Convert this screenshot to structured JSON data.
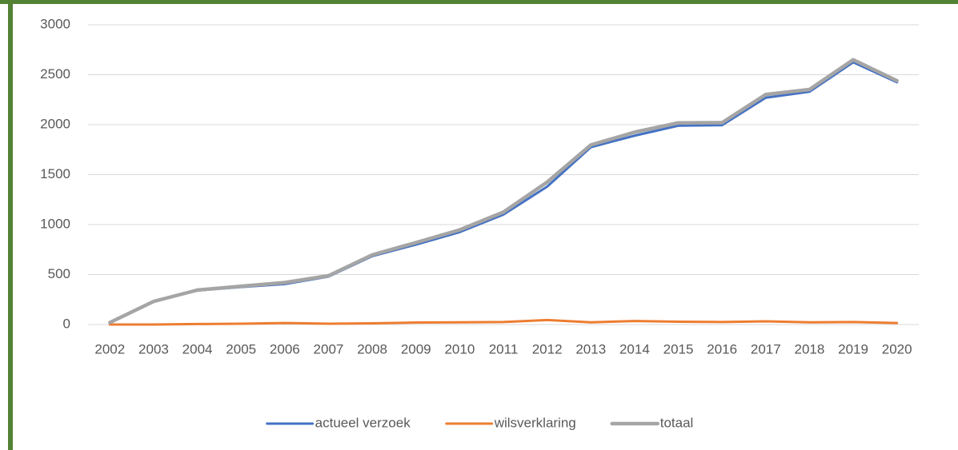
{
  "chart_data": {
    "type": "line",
    "categories": [
      "2002",
      "2003",
      "2004",
      "2005",
      "2006",
      "2007",
      "2008",
      "2009",
      "2010",
      "2011",
      "2012",
      "2013",
      "2014",
      "2015",
      "2016",
      "2017",
      "2018",
      "2019",
      "2020"
    ],
    "series": [
      {
        "name": "actueel verzoek",
        "color": "#4472c4",
        "values": [
          20,
          231,
          340,
          375,
          405,
          480,
          685,
          800,
          925,
          1100,
          1380,
          1775,
          1890,
          1990,
          1995,
          2270,
          2330,
          2625,
          2425
        ]
      },
      {
        "name": "wilsverklaring",
        "color": "#ed7d31",
        "values": [
          0,
          0,
          5,
          8,
          15,
          8,
          12,
          20,
          22,
          25,
          45,
          22,
          35,
          28,
          25,
          32,
          22,
          25,
          15
        ]
      },
      {
        "name": "totaal",
        "color": "#a5a5a5",
        "values": [
          20,
          231,
          345,
          383,
          420,
          488,
          697,
          820,
          947,
          1125,
          1425,
          1797,
          1925,
          2018,
          2020,
          2302,
          2352,
          2650,
          2440
        ]
      }
    ],
    "ylim": [
      0,
      3000
    ],
    "yticks": [
      0,
      500,
      1000,
      1500,
      2000,
      2500,
      3000
    ],
    "grid": true,
    "legend": "bottom"
  }
}
